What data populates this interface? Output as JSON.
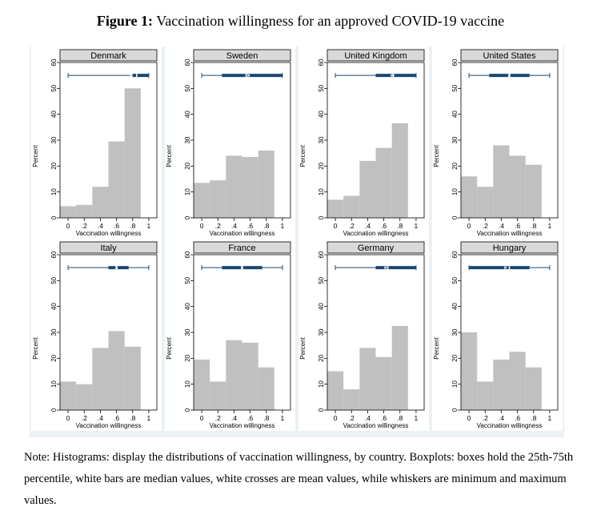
{
  "title": {
    "label": "Figure 1:",
    "text": "Vaccination willingness for an approved COVID-19 vaccine"
  },
  "note": "Note: Histograms: display the distributions of vaccination willingness, by country. Boxplots: boxes hold the 25th-75th percentile, white bars are median values, white crosses are mean values, while whiskers are minimum and maximum values.",
  "colors": {
    "bar": "#c0c0c0",
    "box": "#1a476f",
    "panel_header": "#d9d9d9",
    "figure_bg": "#eaf2f3"
  },
  "chart_data": {
    "type": "bar",
    "xlabel": "Vaccination willingness",
    "ylabel": "Percent",
    "x_ticks": [
      "0",
      ".2",
      ".4",
      ".6",
      ".8",
      "1"
    ],
    "y_ticks": [
      "0",
      "10",
      "20",
      "30",
      "40",
      "50",
      "60"
    ],
    "ylim": [
      0,
      60
    ],
    "xlim": [
      -0.1,
      1.1
    ],
    "bin_edges": [
      -0.1,
      0.1,
      0.3,
      0.5,
      0.7,
      0.9,
      1.1
    ],
    "panels": [
      {
        "name": "Denmark",
        "values": [
          4.5,
          5,
          12,
          29.5,
          50,
          0
        ],
        "box": {
          "min": 0,
          "q1": 0.8,
          "median": 0.85,
          "mean": 0.78,
          "q3": 1.0,
          "max": 1.0
        }
      },
      {
        "name": "Sweden",
        "values": [
          13.5,
          14.5,
          24,
          23.5,
          26,
          0
        ],
        "box": {
          "min": 0,
          "q1": 0.25,
          "median": 0.55,
          "mean": 0.58,
          "q3": 1.0,
          "max": 1.0
        }
      },
      {
        "name": "United Kingdom",
        "values": [
          7,
          8.5,
          22,
          27,
          36.5,
          0
        ],
        "box": {
          "min": 0,
          "q1": 0.5,
          "median": 0.72,
          "mean": 0.7,
          "q3": 1.0,
          "max": 1.0
        }
      },
      {
        "name": "United States",
        "values": [
          16,
          12,
          28,
          24,
          20.5,
          0
        ],
        "box": {
          "min": 0,
          "q1": 0.25,
          "median": 0.5,
          "mean": 0.5,
          "q3": 0.75,
          "max": 1.0
        }
      },
      {
        "name": "Italy",
        "values": [
          11,
          10,
          24,
          30.5,
          24.5,
          0
        ],
        "box": {
          "min": 0,
          "q1": 0.5,
          "median": 0.6,
          "mean": 0.6,
          "q3": 0.75,
          "max": 1.0
        }
      },
      {
        "name": "France",
        "values": [
          19.5,
          11,
          27,
          26,
          16.5,
          0
        ],
        "box": {
          "min": 0,
          "q1": 0.25,
          "median": 0.5,
          "mean": 0.5,
          "q3": 0.75,
          "max": 1.0
        }
      },
      {
        "name": "Germany",
        "values": [
          15,
          8,
          24,
          20.5,
          32.5,
          0
        ],
        "box": {
          "min": 0,
          "q1": 0.5,
          "median": 0.65,
          "mean": 0.62,
          "q3": 1.0,
          "max": 1.0
        }
      },
      {
        "name": "Hungary",
        "values": [
          30,
          11,
          19.5,
          22.5,
          16.5,
          0
        ],
        "box": {
          "min": 0,
          "q1": 0.0,
          "median": 0.5,
          "mean": 0.45,
          "q3": 0.75,
          "max": 1.0
        }
      }
    ]
  }
}
